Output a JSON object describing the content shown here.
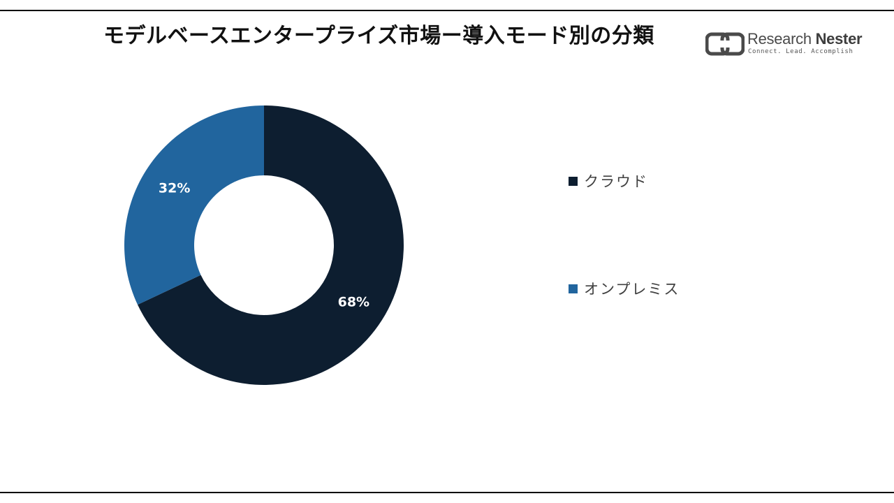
{
  "chart_data": {
    "type": "pie",
    "title": "モデルベースエンタープライズ市場ー導入モード別の分類",
    "categories": [
      "クラウド",
      "オンプレミス"
    ],
    "values": [
      68,
      32
    ],
    "data_labels": [
      "68%",
      "32%"
    ],
    "colors": [
      "#0d1e30",
      "#21659e"
    ],
    "hole": "donut",
    "legend_position": "right"
  },
  "logo": {
    "name_regular": "Research ",
    "name_bold": "Nester",
    "tagline": "Connect. Lead. Accomplish"
  },
  "colors": {
    "background": "#ffffff",
    "rule": "#000000",
    "logo_mark": "#4a4a4a"
  }
}
